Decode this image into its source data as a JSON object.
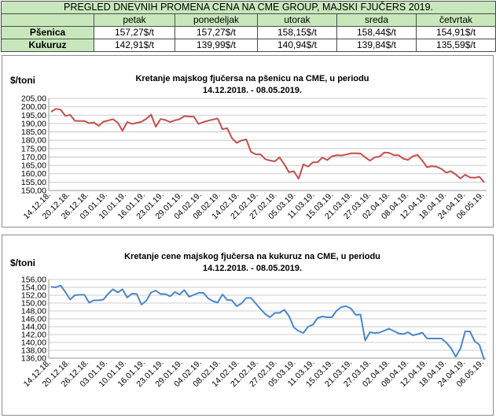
{
  "table": {
    "title": "PREGLED DNEVNIH PROMENA CENA NA CME GROUP, MAJSKI FJUČERS 2019.",
    "days": [
      "petak",
      "ponedeljak",
      "utorak",
      "sreda",
      "četvrtak"
    ],
    "rows": [
      {
        "label": "Pšenica",
        "values": [
          "157,27$/t",
          "157,27$/t",
          "158,15$/t",
          "158,44$/t",
          "154,91$/t"
        ]
      },
      {
        "label": "Kukuruz",
        "values": [
          "142,91$/t",
          "139,99$/t",
          "140,94$/t",
          "139,84$/t",
          "135,59$/t"
        ]
      }
    ]
  },
  "chart_data": [
    {
      "type": "line",
      "ylabel": "$/toni",
      "title_line1": "Kretanje majskog fjučersa na  pšenicu na CME, u periodu",
      "title_line2": "14.12.2018. - 08.05.2019.",
      "ylim": [
        150,
        205
      ],
      "yticks": [
        "150,00",
        "155,00",
        "160,00",
        "165,00",
        "170,00",
        "175,00",
        "180,00",
        "185,00",
        "190,00",
        "195,00",
        "200,00",
        "205,00"
      ],
      "xticks": [
        "14.12.18.",
        "20.12.18.",
        "26.12.18.",
        "03.01.19.",
        "10.01.19.",
        "16.01.19.",
        "23.01.19.",
        "29.01.19.",
        "04.02.19.",
        "08.02.19.",
        "14.02.19.",
        "21.02.19.",
        "27.02.19.",
        "05.03.19.",
        "11.03.19.",
        "15.03.19.",
        "21.03.19.",
        "27.03.19.",
        "02.04.19.",
        "08.04.19.",
        "12.04.19.",
        "18.04.19.",
        "24.04.19.",
        "06.05.19."
      ],
      "color": "#c0504d",
      "grid": true,
      "series": [
        {
          "values": [
            197.0,
            198.8,
            198.3,
            194.5,
            195.2,
            191.6,
            191.5,
            191.5,
            190.2,
            190.6,
            188.6,
            191.1,
            191.8,
            192.6,
            190.5,
            185.7,
            190.9,
            189.8,
            190.4,
            191.1,
            192.8,
            195.3,
            188.1,
            192.7,
            192.1,
            190.9,
            191.9,
            192.6,
            194.4,
            194.2,
            194.1,
            189.7,
            190.9,
            191.7,
            192.4,
            193.0,
            186.6,
            187.2,
            181.3,
            178.4,
            179.9,
            180.5,
            173.1,
            171.6,
            171.6,
            168.7,
            167.9,
            167.4,
            169.8,
            165.6,
            160.9,
            161.5,
            157.0,
            165.6,
            164.3,
            166.8,
            166.9,
            169.7,
            168.2,
            170.4,
            171.1,
            170.9,
            171.5,
            172.2,
            172.2,
            172.1,
            169.8,
            167.8,
            169.8,
            170.2,
            172.7,
            172.5,
            171.1,
            171.1,
            169.0,
            168.3,
            170.4,
            171.3,
            167.8,
            163.9,
            164.5,
            164.2,
            162.9,
            160.7,
            161.5,
            159.6,
            157.2,
            159.4,
            157.8,
            157.6,
            158.2,
            154.9
          ]
        }
      ]
    },
    {
      "type": "line",
      "ylabel": "$/toni",
      "title_line1": "Kretanje cene majskog fjučersa na  kukuruz na CME, u periodu",
      "title_line2": "14.12.2018. - 08.05.2019.",
      "ylim": [
        136,
        156
      ],
      "yticks": [
        "136,00",
        "138,00",
        "140,00",
        "142,00",
        "144,00",
        "146,00",
        "148,00",
        "150,00",
        "152,00",
        "154,00",
        "156,00"
      ],
      "xticks": [
        "14.12.18.",
        "20.12.18.",
        "26.12.18.",
        "03.01.19.",
        "10.01.19.",
        "16.01.19.",
        "23.01.19.",
        "29.01.19.",
        "04.02.19.",
        "08.02.19.",
        "14.02.19.",
        "21.02.19.",
        "27.02.19.",
        "05.03.19.",
        "11.03.19.",
        "15.03.19.",
        "21.03.19.",
        "27.03.19.",
        "02.04.19.",
        "08.04.19.",
        "12.04.19.",
        "18.04.19.",
        "24.04.19.",
        "06.05.19."
      ],
      "color": "#4a86c8",
      "grid": true,
      "series": [
        {
          "values": [
            154.1,
            154.0,
            154.5,
            152.8,
            150.9,
            152.0,
            152.1,
            152.1,
            150.1,
            150.7,
            150.7,
            150.9,
            152.4,
            153.5,
            152.7,
            153.5,
            151.4,
            152.4,
            152.3,
            149.6,
            150.6,
            152.7,
            153.2,
            152.3,
            152.3,
            151.7,
            152.8,
            152.2,
            153.3,
            151.6,
            152.1,
            152.6,
            152.6,
            151.2,
            150.5,
            150.1,
            152.2,
            150.8,
            150.7,
            149.2,
            149.9,
            151.3,
            151.3,
            149.9,
            148.5,
            147.2,
            146.4,
            147.5,
            147.5,
            148.3,
            146.7,
            143.8,
            142.9,
            142.4,
            144.0,
            144.5,
            146.2,
            146.6,
            146.4,
            146.4,
            148.1,
            149.0,
            149.2,
            148.6,
            147.0,
            147.1,
            140.5,
            142.6,
            142.4,
            142.5,
            143.0,
            143.5,
            142.9,
            142.3,
            142.1,
            142.6,
            141.8,
            142.1,
            142.5,
            141.0,
            141.0,
            141.0,
            141.0,
            140.0,
            138.6,
            136.4,
            138.4,
            142.8,
            142.8,
            140.3,
            139.4,
            135.6
          ]
        }
      ]
    }
  ]
}
